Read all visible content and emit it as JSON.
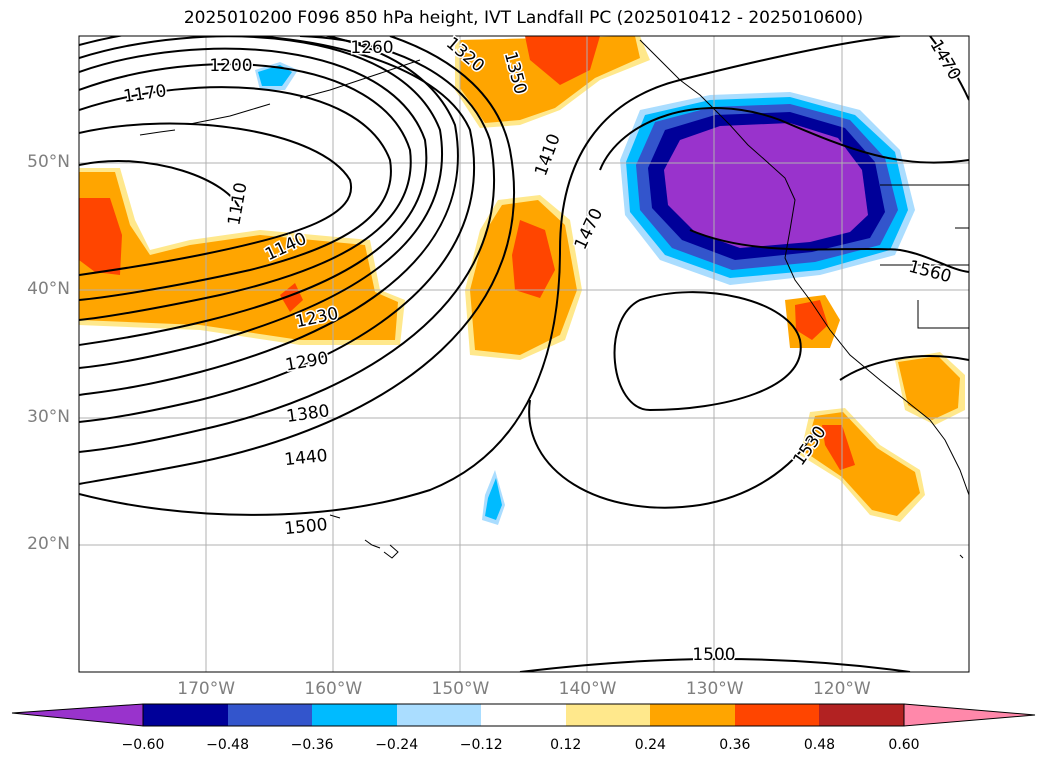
{
  "title": "2025010200 F096 850 hPa height, IVT Landfall PC (2025010412 - 2025010600)",
  "lat_labels": [
    {
      "label": "50°N",
      "lat": 50
    },
    {
      "label": "40°N",
      "lat": 40
    },
    {
      "label": "30°N",
      "lat": 30
    },
    {
      "label": "20°N",
      "lat": 20
    }
  ],
  "lon_labels": [
    {
      "label": "170°W",
      "lon": -170
    },
    {
      "label": "160°W",
      "lon": -160
    },
    {
      "label": "150°W",
      "lon": -150
    },
    {
      "label": "140°W",
      "lon": -140
    },
    {
      "label": "130°W",
      "lon": -130
    },
    {
      "label": "120°W",
      "lon": -120
    }
  ],
  "map_extent": {
    "lon_min": -180,
    "lon_max": -110,
    "lat_min": 10,
    "lat_max": 60
  },
  "contour_labels": [
    "1200",
    "1170",
    "1110",
    "1140",
    "1230",
    "1290",
    "1380",
    "1440",
    "1500",
    "1350",
    "1410",
    "1470",
    "1530",
    "1560",
    "1500",
    "1260",
    "1320",
    "1470"
  ],
  "colorbar": {
    "ticks": [
      "−0.60",
      "−0.48",
      "−0.36",
      "−0.24",
      "−0.12",
      "0.12",
      "0.24",
      "0.36",
      "0.48",
      "0.60"
    ],
    "colors": [
      "#9933cc",
      "#000099",
      "#3355cc",
      "#00bbff",
      "#aaddff",
      "#ffffff",
      "#ffe88c",
      "#ffa500",
      "#ff4500",
      "#b22222",
      "#ff88aa"
    ]
  }
}
